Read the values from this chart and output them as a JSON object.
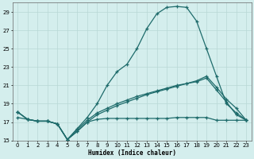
{
  "xlabel": "Humidex (Indice chaleur)",
  "bg_color": "#d4eeed",
  "line_color": "#1e6b6b",
  "grid_color": "#b8d8d6",
  "xlim": [
    -0.5,
    23.5
  ],
  "ylim": [
    15,
    30
  ],
  "yticks": [
    15,
    17,
    19,
    21,
    23,
    25,
    27,
    29
  ],
  "xticks": [
    0,
    1,
    2,
    3,
    4,
    5,
    6,
    7,
    8,
    9,
    10,
    11,
    12,
    13,
    14,
    15,
    16,
    17,
    18,
    19,
    20,
    21,
    22,
    23
  ],
  "line1_x": [
    0,
    1,
    2,
    3,
    4,
    5,
    6,
    7,
    8,
    9,
    10,
    11,
    12,
    13,
    14,
    15,
    16,
    17,
    18,
    19,
    20,
    21,
    22,
    23
  ],
  "line1_y": [
    18.1,
    17.3,
    17.1,
    17.1,
    16.8,
    15.1,
    16.3,
    17.5,
    19.0,
    21.0,
    22.5,
    23.3,
    25.0,
    27.2,
    28.8,
    29.5,
    29.6,
    29.5,
    28.0,
    25.0,
    22.0,
    19.0,
    18.0,
    17.2
  ],
  "line2_x": [
    0,
    1,
    2,
    3,
    4,
    5,
    6,
    7,
    8,
    9,
    10,
    11,
    12,
    13,
    14,
    15,
    16,
    17,
    18,
    19,
    20,
    21,
    22,
    23
  ],
  "line2_y": [
    18.1,
    17.3,
    17.1,
    17.1,
    16.8,
    15.1,
    16.0,
    17.0,
    17.8,
    18.3,
    18.8,
    19.2,
    19.6,
    20.0,
    20.3,
    20.6,
    20.9,
    21.2,
    21.5,
    22.0,
    20.8,
    19.5,
    18.5,
    17.2
  ],
  "line3_x": [
    0,
    1,
    2,
    3,
    4,
    5,
    6,
    7,
    8,
    9,
    10,
    11,
    12,
    13,
    14,
    15,
    16,
    17,
    18,
    19,
    20,
    21,
    22,
    23
  ],
  "line3_y": [
    17.5,
    17.3,
    17.1,
    17.1,
    16.8,
    15.1,
    16.0,
    17.0,
    17.3,
    17.4,
    17.4,
    17.4,
    17.4,
    17.4,
    17.4,
    17.4,
    17.5,
    17.5,
    17.5,
    17.5,
    17.2,
    17.2,
    17.2,
    17.2
  ],
  "line4_x": [
    0,
    1,
    2,
    3,
    4,
    5,
    6,
    7,
    8,
    9,
    10,
    11,
    12,
    13,
    14,
    15,
    16,
    17,
    18,
    19,
    20,
    21,
    22,
    23
  ],
  "line4_y": [
    18.1,
    17.3,
    17.1,
    17.1,
    16.8,
    15.1,
    16.2,
    17.2,
    18.0,
    18.5,
    19.0,
    19.4,
    19.8,
    20.1,
    20.4,
    20.7,
    21.0,
    21.2,
    21.4,
    21.8,
    20.5,
    19.2,
    17.8,
    17.2
  ]
}
